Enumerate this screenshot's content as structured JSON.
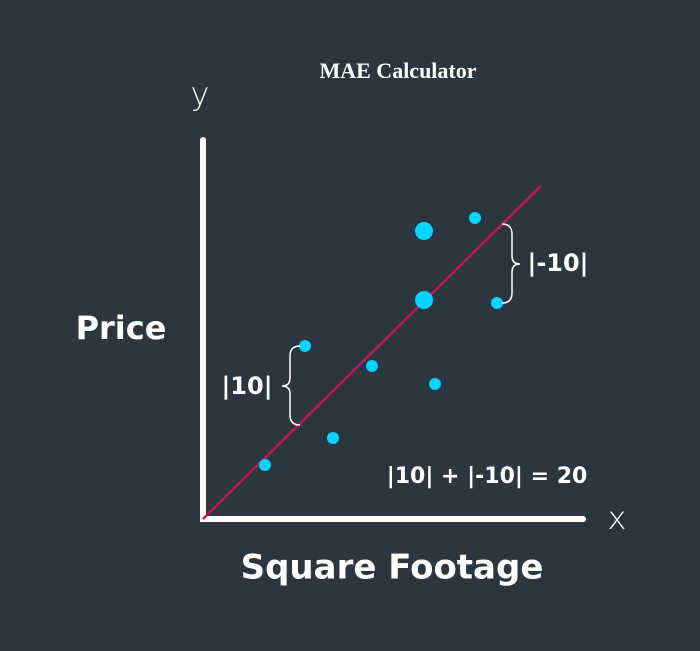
{
  "title": "MAE Calculator",
  "axes": {
    "y_letter": "y",
    "x_letter": "x",
    "y_label": "Price",
    "x_label": "Square Footage"
  },
  "annotations": {
    "left_error": "|10|",
    "right_error": "|-10|",
    "sum": "|10| + |-10| = 20"
  }
}
